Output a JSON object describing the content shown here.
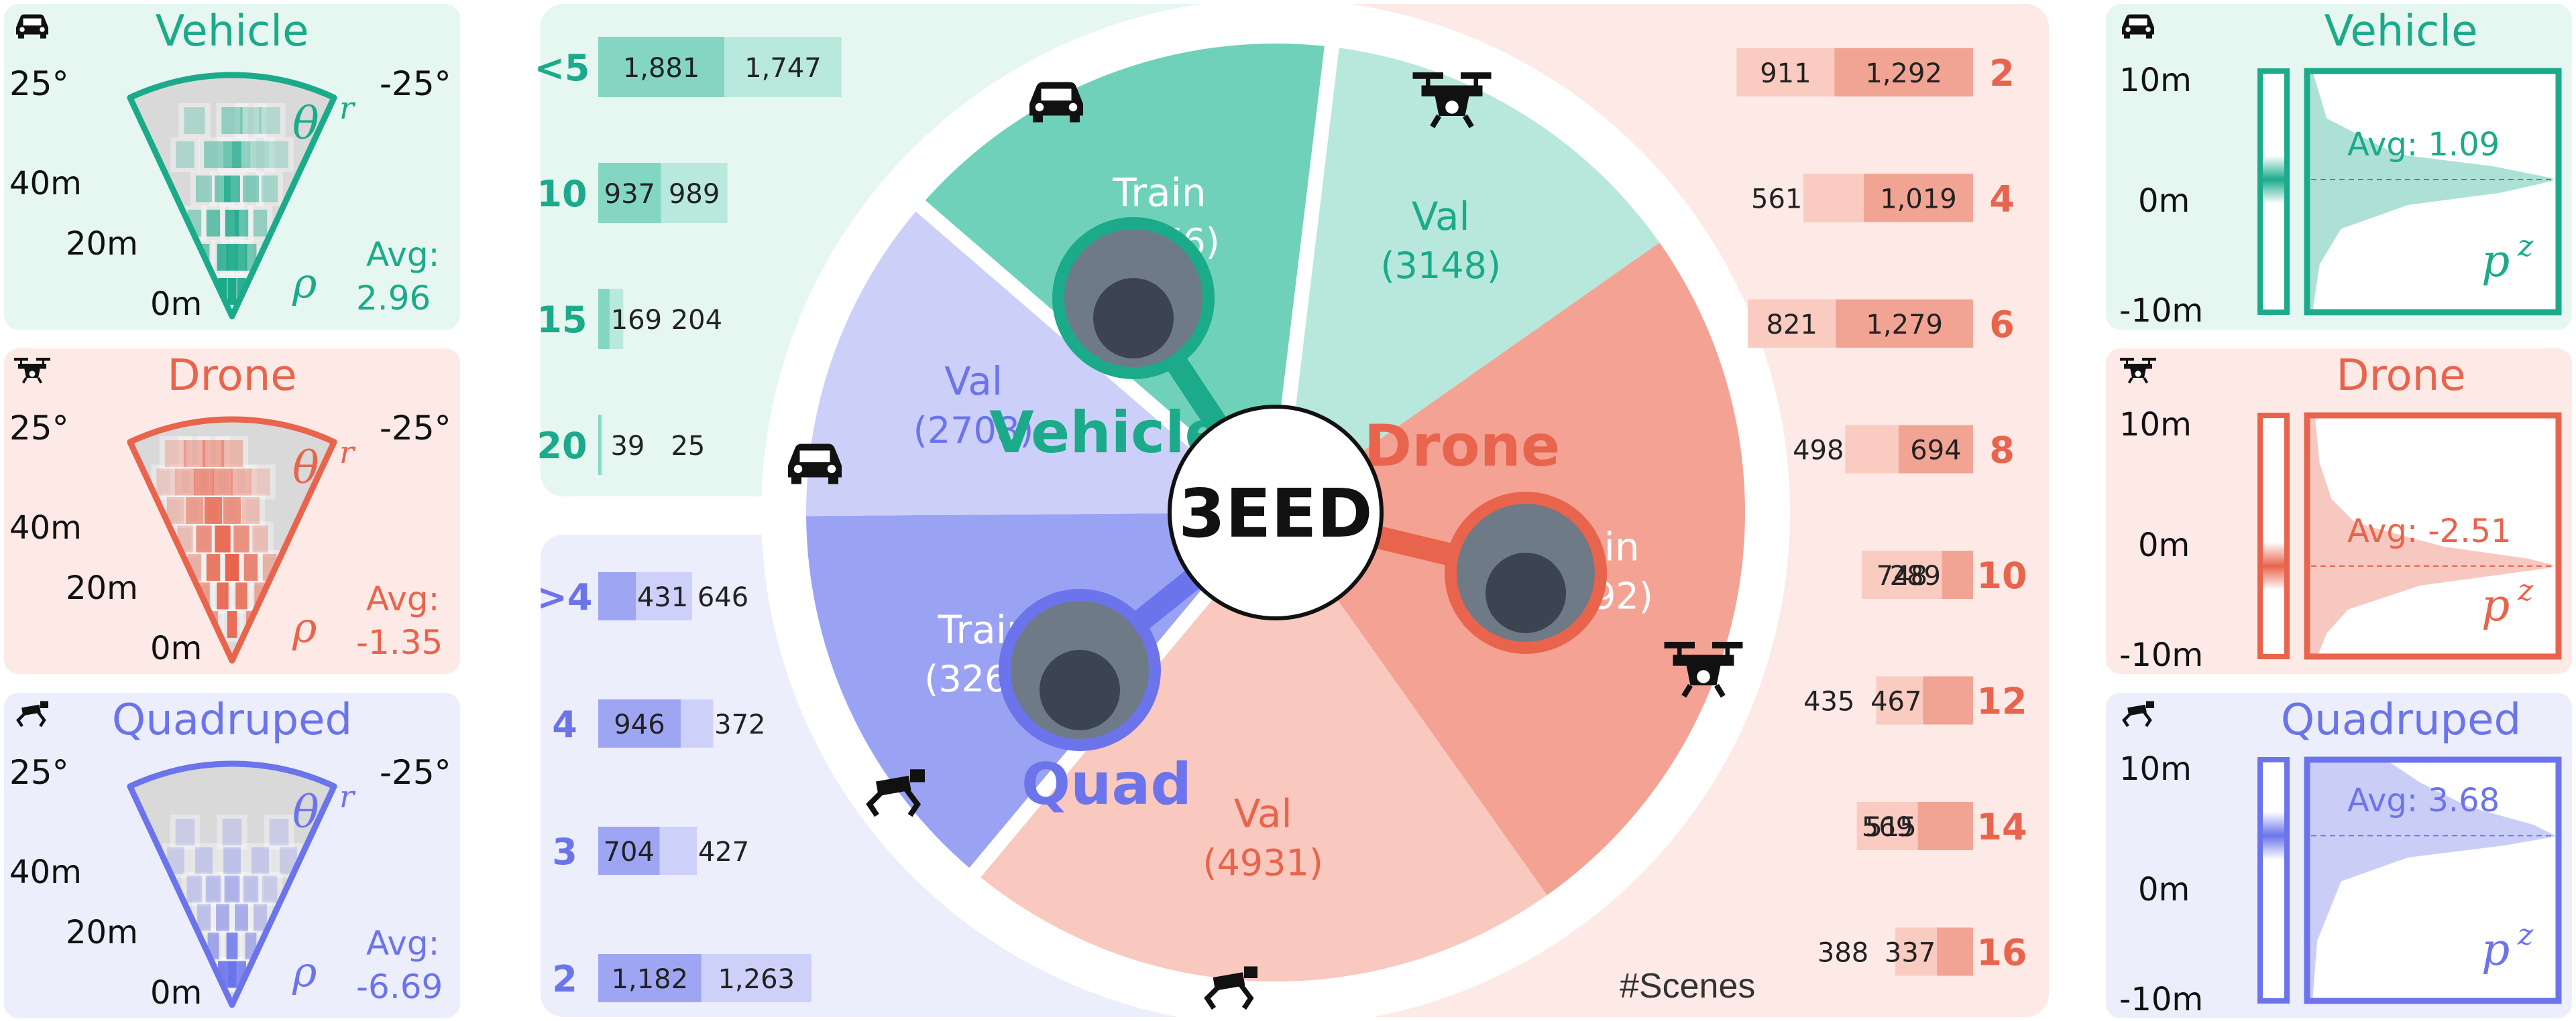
{
  "colors": {
    "vehicle": "#1baa8a",
    "vehicle_bg": "#e6f6f1",
    "vehicle_light": "#b5e5d8",
    "vehicle_mid": "#6cd0b8",
    "drone": "#e8644c",
    "drone_bg": "#fdeae6",
    "drone_light": "#f9c9bf",
    "drone_mid": "#f2a191",
    "quad": "#6b74ea",
    "quad_bg": "#eceefc",
    "quad_light": "#cbcff8",
    "quad_mid": "#a8b0f4",
    "fan_gray": "#d9d9d9"
  },
  "center": {
    "label": "3EED",
    "scenes_label": "#Scenes"
  },
  "left_panels": [
    {
      "id": "vehicle",
      "title": "Vehicle",
      "icon": "car-icon",
      "angle_left": "25°",
      "angle_right": "-25°",
      "theta": "θ",
      "theta_sup": "r",
      "rho": "ρ",
      "ranges": [
        "40m",
        "20m",
        "0m"
      ],
      "avg_label": "Avg:",
      "avg_value": "2.96"
    },
    {
      "id": "drone",
      "title": "Drone",
      "icon": "drone-icon",
      "angle_left": "25°",
      "angle_right": "-25°",
      "theta": "θ",
      "theta_sup": "r",
      "rho": "ρ",
      "ranges": [
        "40m",
        "20m",
        "0m"
      ],
      "avg_label": "Avg:",
      "avg_value": "-1.35"
    },
    {
      "id": "quad",
      "title": "Quadruped",
      "icon": "quadruped-icon",
      "angle_left": "25°",
      "angle_right": "-25°",
      "theta": "θ",
      "theta_sup": "r",
      "rho": "ρ",
      "ranges": [
        "40m",
        "20m",
        "0m"
      ],
      "avg_label": "Avg:",
      "avg_value": "-6.69"
    }
  ],
  "right_panels": [
    {
      "id": "vehicle",
      "title": "Vehicle",
      "icon": "car-icon",
      "ticks": [
        "10m",
        "0m",
        "-10m"
      ],
      "avg": "Avg: 1.09",
      "p": "p",
      "p_sup": "z"
    },
    {
      "id": "drone",
      "title": "Drone",
      "icon": "drone-icon",
      "ticks": [
        "10m",
        "0m",
        "-10m"
      ],
      "avg": "Avg: -2.51",
      "p": "p",
      "p_sup": "z"
    },
    {
      "id": "quad",
      "title": "Quadruped",
      "icon": "quadruped-icon",
      "ticks": [
        "10m",
        "0m",
        "-10m"
      ],
      "avg": "Avg: 3.68",
      "p": "p",
      "p_sup": "z"
    }
  ],
  "chart_data": [
    {
      "type": "pie",
      "labels": [
        "Vehicle Train",
        "Vehicle Val",
        "Drone Train",
        "Drone Val",
        "Quad Train",
        "Quad Val"
      ],
      "slice_labels": [
        "Train",
        "Val",
        "Train",
        "Val",
        "Train",
        "Val"
      ],
      "value_labels": [
        "(3676)",
        "(3148)",
        "(5892)",
        "(4931)",
        "(3263)",
        "(2708)"
      ],
      "values": [
        3676,
        3148,
        5892,
        4931,
        3263,
        2708
      ],
      "group_labels": [
        "Vehicle",
        "Drone",
        "Quad"
      ]
    },
    {
      "type": "bar",
      "group": "Vehicle",
      "categories": [
        "<5",
        "10",
        "15",
        "20"
      ],
      "series": [
        {
          "values": [
            1881,
            937,
            169,
            39
          ]
        },
        {
          "values": [
            1747,
            989,
            204,
            25
          ]
        }
      ],
      "value_labels_a": [
        "1,881",
        "937",
        "169",
        "39"
      ],
      "value_labels_b": [
        "1,747",
        "989",
        "204",
        "25"
      ]
    },
    {
      "type": "bar",
      "group": "Quad",
      "categories": [
        ">4",
        "4",
        "3",
        "2"
      ],
      "series": [
        {
          "values": [
            431,
            946,
            704,
            1182
          ]
        },
        {
          "values": [
            646,
            372,
            427,
            1263
          ]
        }
      ],
      "value_labels_a": [
        "431",
        "946",
        "704",
        "1,182"
      ],
      "value_labels_b": [
        "646",
        "372",
        "427",
        "1,263"
      ]
    },
    {
      "type": "bar",
      "group": "Drone",
      "categories": [
        "2",
        "4",
        "6",
        "8",
        "10",
        "12",
        "14",
        "16"
      ],
      "series": [
        {
          "values": [
            1292,
            1019,
            1279,
            694,
            289,
            467,
            515,
            337
          ]
        },
        {
          "values": [
            911,
            561,
            821,
            498,
            748,
            435,
            569,
            388
          ]
        }
      ],
      "value_labels_a": [
        "1,292",
        "1,019",
        "1,279",
        "694",
        "289",
        "467",
        "515",
        "337"
      ],
      "value_labels_b": [
        "911",
        "561",
        "821",
        "498",
        "748",
        "435",
        "569",
        "388"
      ]
    },
    {
      "type": "line",
      "group": "Vehicle",
      "ylim": [
        -10,
        10
      ],
      "x": [
        -10,
        -6,
        -3,
        -1,
        0,
        1,
        2,
        3,
        6,
        10
      ],
      "y": [
        0.0,
        0.03,
        0.12,
        0.4,
        0.78,
        1.0,
        0.75,
        0.35,
        0.06,
        0.0
      ]
    },
    {
      "type": "line",
      "group": "Drone",
      "ylim": [
        -10,
        10
      ],
      "x": [
        -10,
        -8,
        -6,
        -4,
        -3,
        -2.5,
        -2,
        -1,
        1,
        3,
        6,
        10
      ],
      "y": [
        0.02,
        0.06,
        0.15,
        0.45,
        0.82,
        1.0,
        0.9,
        0.55,
        0.18,
        0.08,
        0.03,
        0.01
      ]
    },
    {
      "type": "line",
      "group": "Quad",
      "ylim": [
        -10,
        10
      ],
      "x": [
        -10,
        -5,
        0,
        2,
        3,
        3.7,
        4.5,
        6,
        8,
        10
      ],
      "y": [
        0.0,
        0.02,
        0.12,
        0.4,
        0.8,
        1.0,
        0.92,
        0.65,
        0.45,
        0.3
      ]
    },
    {
      "type": "heatmap",
      "group": "Vehicle",
      "ylim": [
        0,
        40
      ],
      "xlim": [
        -25,
        25
      ],
      "x": [
        -2,
        -1,
        0,
        1,
        2,
        3,
        -3,
        -1,
        0,
        1,
        2,
        -4,
        -2,
        0,
        1,
        3,
        -3,
        -1,
        0,
        2,
        4,
        -5,
        -2,
        0,
        1,
        3,
        5,
        -4,
        0,
        2,
        4
      ],
      "y": [
        2,
        2,
        2,
        2,
        2,
        2,
        8,
        8,
        8,
        8,
        8,
        14,
        14,
        14,
        14,
        14,
        20,
        20,
        20,
        20,
        20,
        26,
        26,
        26,
        26,
        26,
        26,
        32,
        32,
        32,
        32
      ],
      "values": [
        0.9,
        1.0,
        1.0,
        0.9,
        0.7,
        0.4,
        0.5,
        0.8,
        0.9,
        0.8,
        0.5,
        0.3,
        0.6,
        0.8,
        0.6,
        0.3,
        0.3,
        0.5,
        0.7,
        0.4,
        0.2,
        0.15,
        0.35,
        0.55,
        0.35,
        0.2,
        0.1,
        0.15,
        0.3,
        0.15,
        0.1
      ]
    },
    {
      "type": "heatmap",
      "group": "Drone",
      "ylim": [
        0,
        40
      ],
      "xlim": [
        -25,
        25
      ],
      "x": [
        -2,
        0,
        2,
        -3,
        -1,
        1,
        3,
        -4,
        -2,
        0,
        2,
        4,
        -5,
        -3,
        -1,
        1,
        3,
        -6,
        -4,
        -2,
        0,
        2,
        -7,
        -5,
        -3,
        -1,
        1,
        3,
        -6,
        -4,
        -2,
        0
      ],
      "y": [
        4,
        4,
        4,
        9,
        9,
        9,
        9,
        14,
        14,
        14,
        14,
        14,
        19,
        19,
        19,
        19,
        19,
        24,
        24,
        24,
        24,
        24,
        29,
        29,
        29,
        29,
        29,
        29,
        34,
        34,
        34,
        34
      ],
      "values": [
        0.5,
        0.9,
        0.6,
        0.5,
        0.9,
        0.8,
        0.4,
        0.3,
        0.8,
        1.0,
        0.7,
        0.3,
        0.2,
        0.6,
        0.9,
        0.6,
        0.2,
        0.2,
        0.5,
        0.8,
        0.6,
        0.2,
        0.1,
        0.3,
        0.6,
        0.5,
        0.3,
        0.1,
        0.15,
        0.3,
        0.4,
        0.25
      ]
    },
    {
      "type": "heatmap",
      "group": "Quad",
      "ylim": [
        0,
        40
      ],
      "xlim": [
        -25,
        25
      ],
      "x": [
        -1,
        0,
        1,
        -2,
        0,
        2,
        -3,
        -1,
        1,
        3,
        -4,
        -2,
        0,
        2,
        4,
        -6,
        -3,
        0,
        3,
        6,
        -5,
        0,
        5
      ],
      "y": [
        3,
        3,
        3,
        8,
        8,
        8,
        13,
        13,
        13,
        13,
        18,
        18,
        18,
        18,
        18,
        23,
        23,
        23,
        23,
        23,
        28,
        28,
        28
      ],
      "values": [
        0.9,
        1.0,
        0.8,
        0.5,
        0.8,
        0.4,
        0.2,
        0.4,
        0.4,
        0.2,
        0.15,
        0.25,
        0.35,
        0.2,
        0.1,
        0.1,
        0.15,
        0.2,
        0.15,
        0.1,
        0.08,
        0.12,
        0.08
      ]
    }
  ]
}
